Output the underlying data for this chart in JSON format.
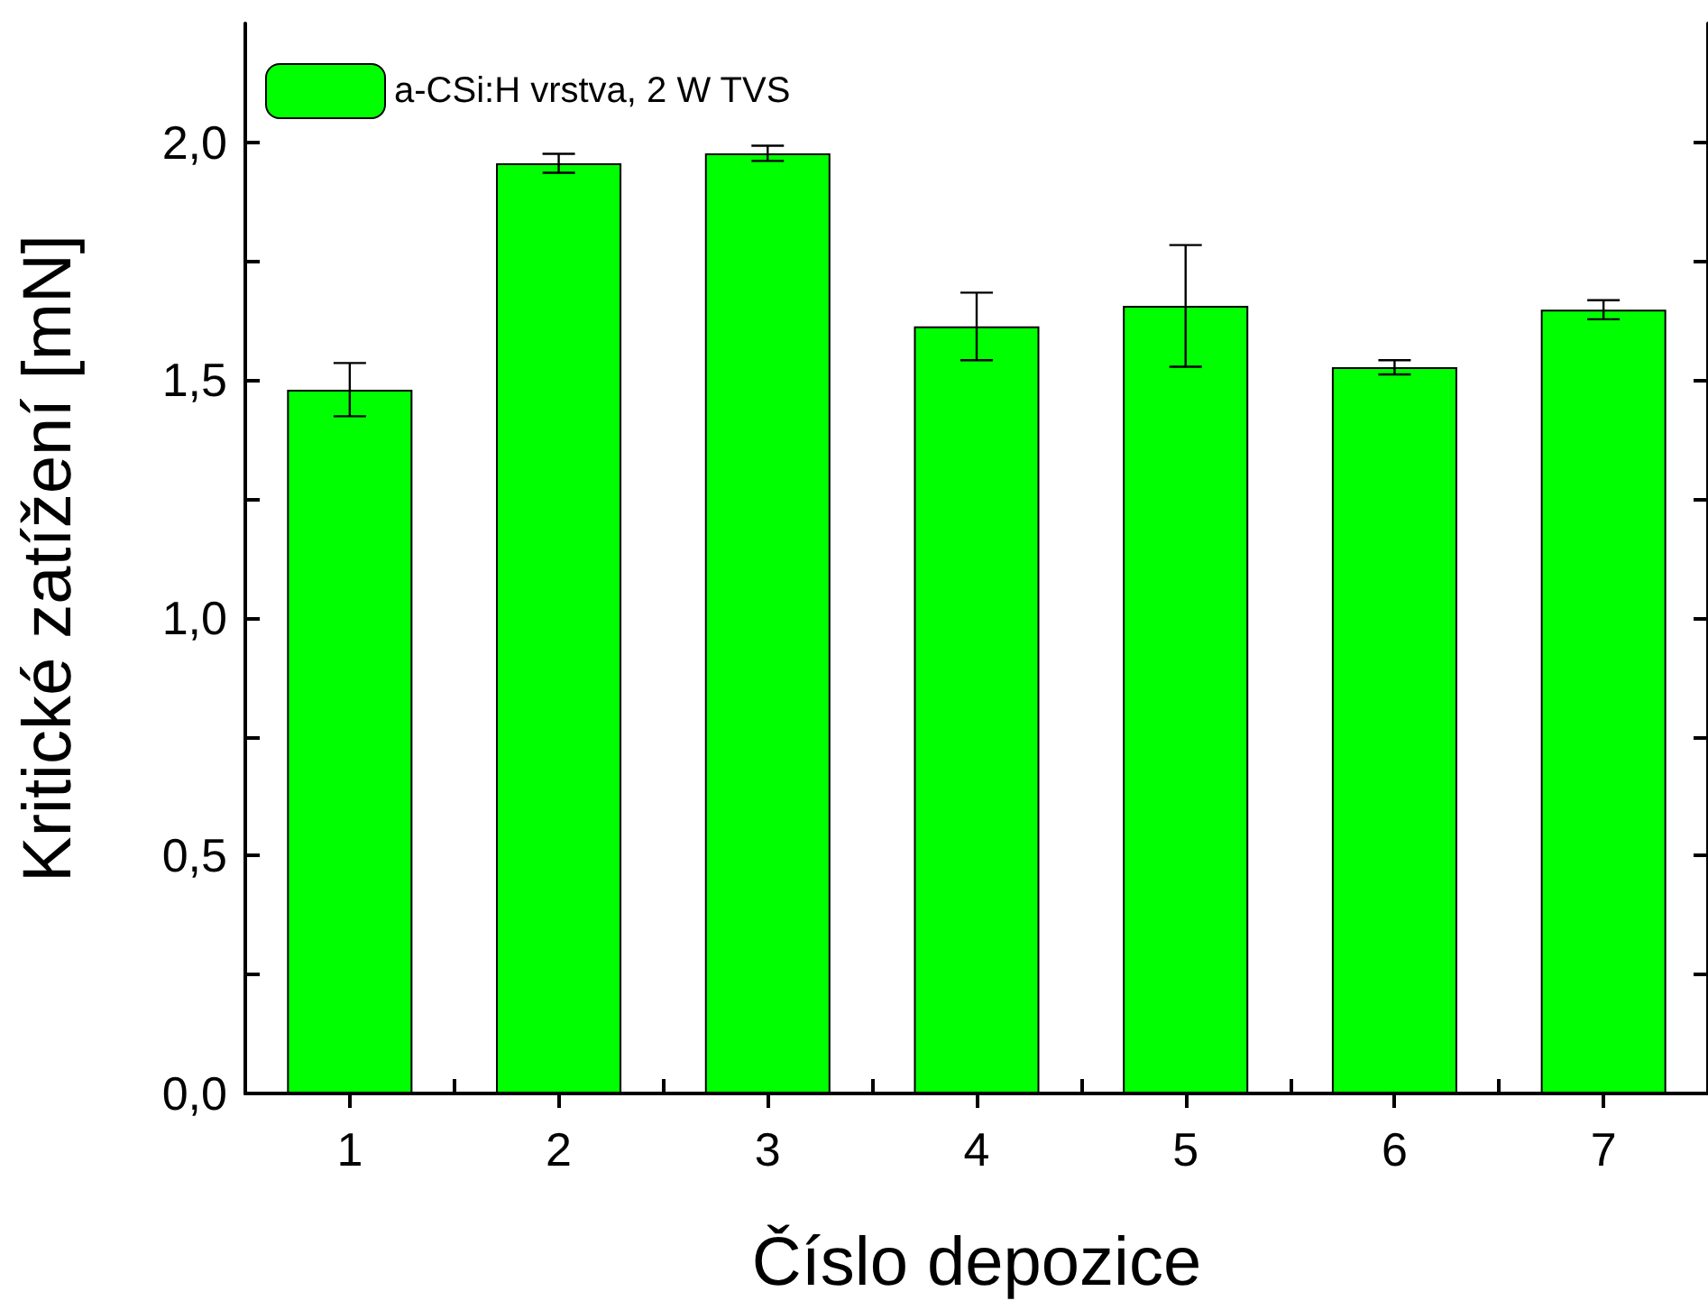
{
  "chart_data": {
    "type": "bar",
    "xlabel": "Číslo depozice",
    "ylabel": "Kritické zatížení [mN]",
    "categories": [
      "1",
      "2",
      "3",
      "4",
      "5",
      "6",
      "7"
    ],
    "series": [
      {
        "name": "a-CSi:H vrstva, 2 W TVS",
        "color": "#00ff00",
        "values": [
          1.48,
          1.956,
          1.977,
          1.613,
          1.656,
          1.527,
          1.648
        ],
        "errors": [
          0.056,
          0.02,
          0.016,
          0.071,
          0.128,
          0.015,
          0.02
        ]
      }
    ],
    "ylim": [
      0,
      2.25
    ],
    "yticks": [
      {
        "value": 0,
        "label": "0,0"
      },
      {
        "value": 0.25,
        "label": null
      },
      {
        "value": 0.5,
        "label": "0,5"
      },
      {
        "value": 0.75,
        "label": null
      },
      {
        "value": 1,
        "label": "1,0"
      },
      {
        "value": 1.25,
        "label": null
      },
      {
        "value": 1.5,
        "label": "1,5"
      },
      {
        "value": 1.75,
        "label": null
      },
      {
        "value": 2,
        "label": "2,0"
      }
    ],
    "grid": false,
    "legend": "top left"
  }
}
